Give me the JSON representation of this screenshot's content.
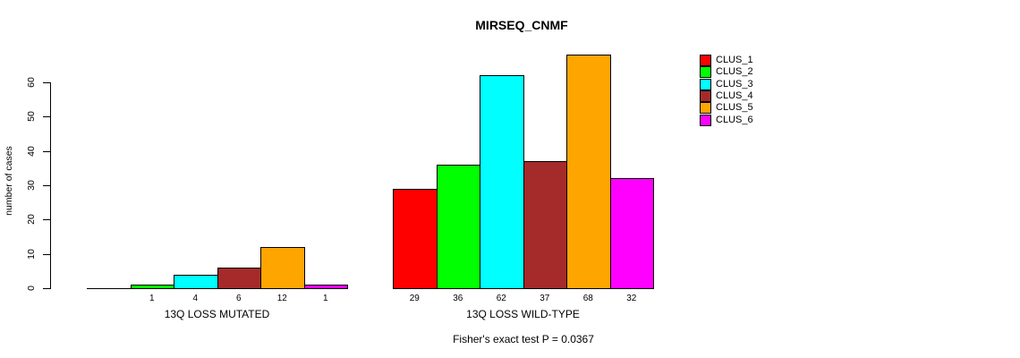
{
  "chart_data": {
    "type": "bar",
    "title": "MIRSEQ_CNMF",
    "ylabel": "number of cases",
    "xlabel": "",
    "ylim": [
      0,
      60
    ],
    "yticks": [
      0,
      10,
      20,
      30,
      40,
      50,
      60
    ],
    "grid": false,
    "legend_position": "right",
    "annotation": "Fisher's exact test P = 0.0367",
    "series_colors": [
      "#FF0000",
      "#00FF00",
      "#00FFFF",
      "#A52A2A",
      "#FFA500",
      "#FF00FF"
    ],
    "legend": [
      {
        "label": "CLUS_1",
        "color": "#FF0000"
      },
      {
        "label": "CLUS_2",
        "color": "#00FF00"
      },
      {
        "label": "CLUS_3",
        "color": "#00FFFF"
      },
      {
        "label": "CLUS_4",
        "color": "#A52A2A"
      },
      {
        "label": "CLUS_5",
        "color": "#FFA500"
      },
      {
        "label": "CLUS_6",
        "color": "#FF00FF"
      }
    ],
    "groups": [
      {
        "label": "13Q LOSS MUTATED",
        "clusters": [
          "CLUS_1",
          "CLUS_2",
          "CLUS_3",
          "CLUS_4",
          "CLUS_5",
          "CLUS_6"
        ],
        "values": [
          0,
          1,
          4,
          6,
          12,
          1
        ],
        "bar_labels": [
          "",
          "1",
          "4",
          "6",
          "12",
          "1"
        ]
      },
      {
        "label": "13Q LOSS WILD-TYPE",
        "clusters": [
          "CLUS_1",
          "CLUS_2",
          "CLUS_3",
          "CLUS_4",
          "CLUS_5",
          "CLUS_6"
        ],
        "values": [
          29,
          36,
          62,
          37,
          68,
          32
        ],
        "bar_labels": [
          "29",
          "36",
          "62",
          "37",
          "68",
          "32"
        ]
      }
    ]
  }
}
